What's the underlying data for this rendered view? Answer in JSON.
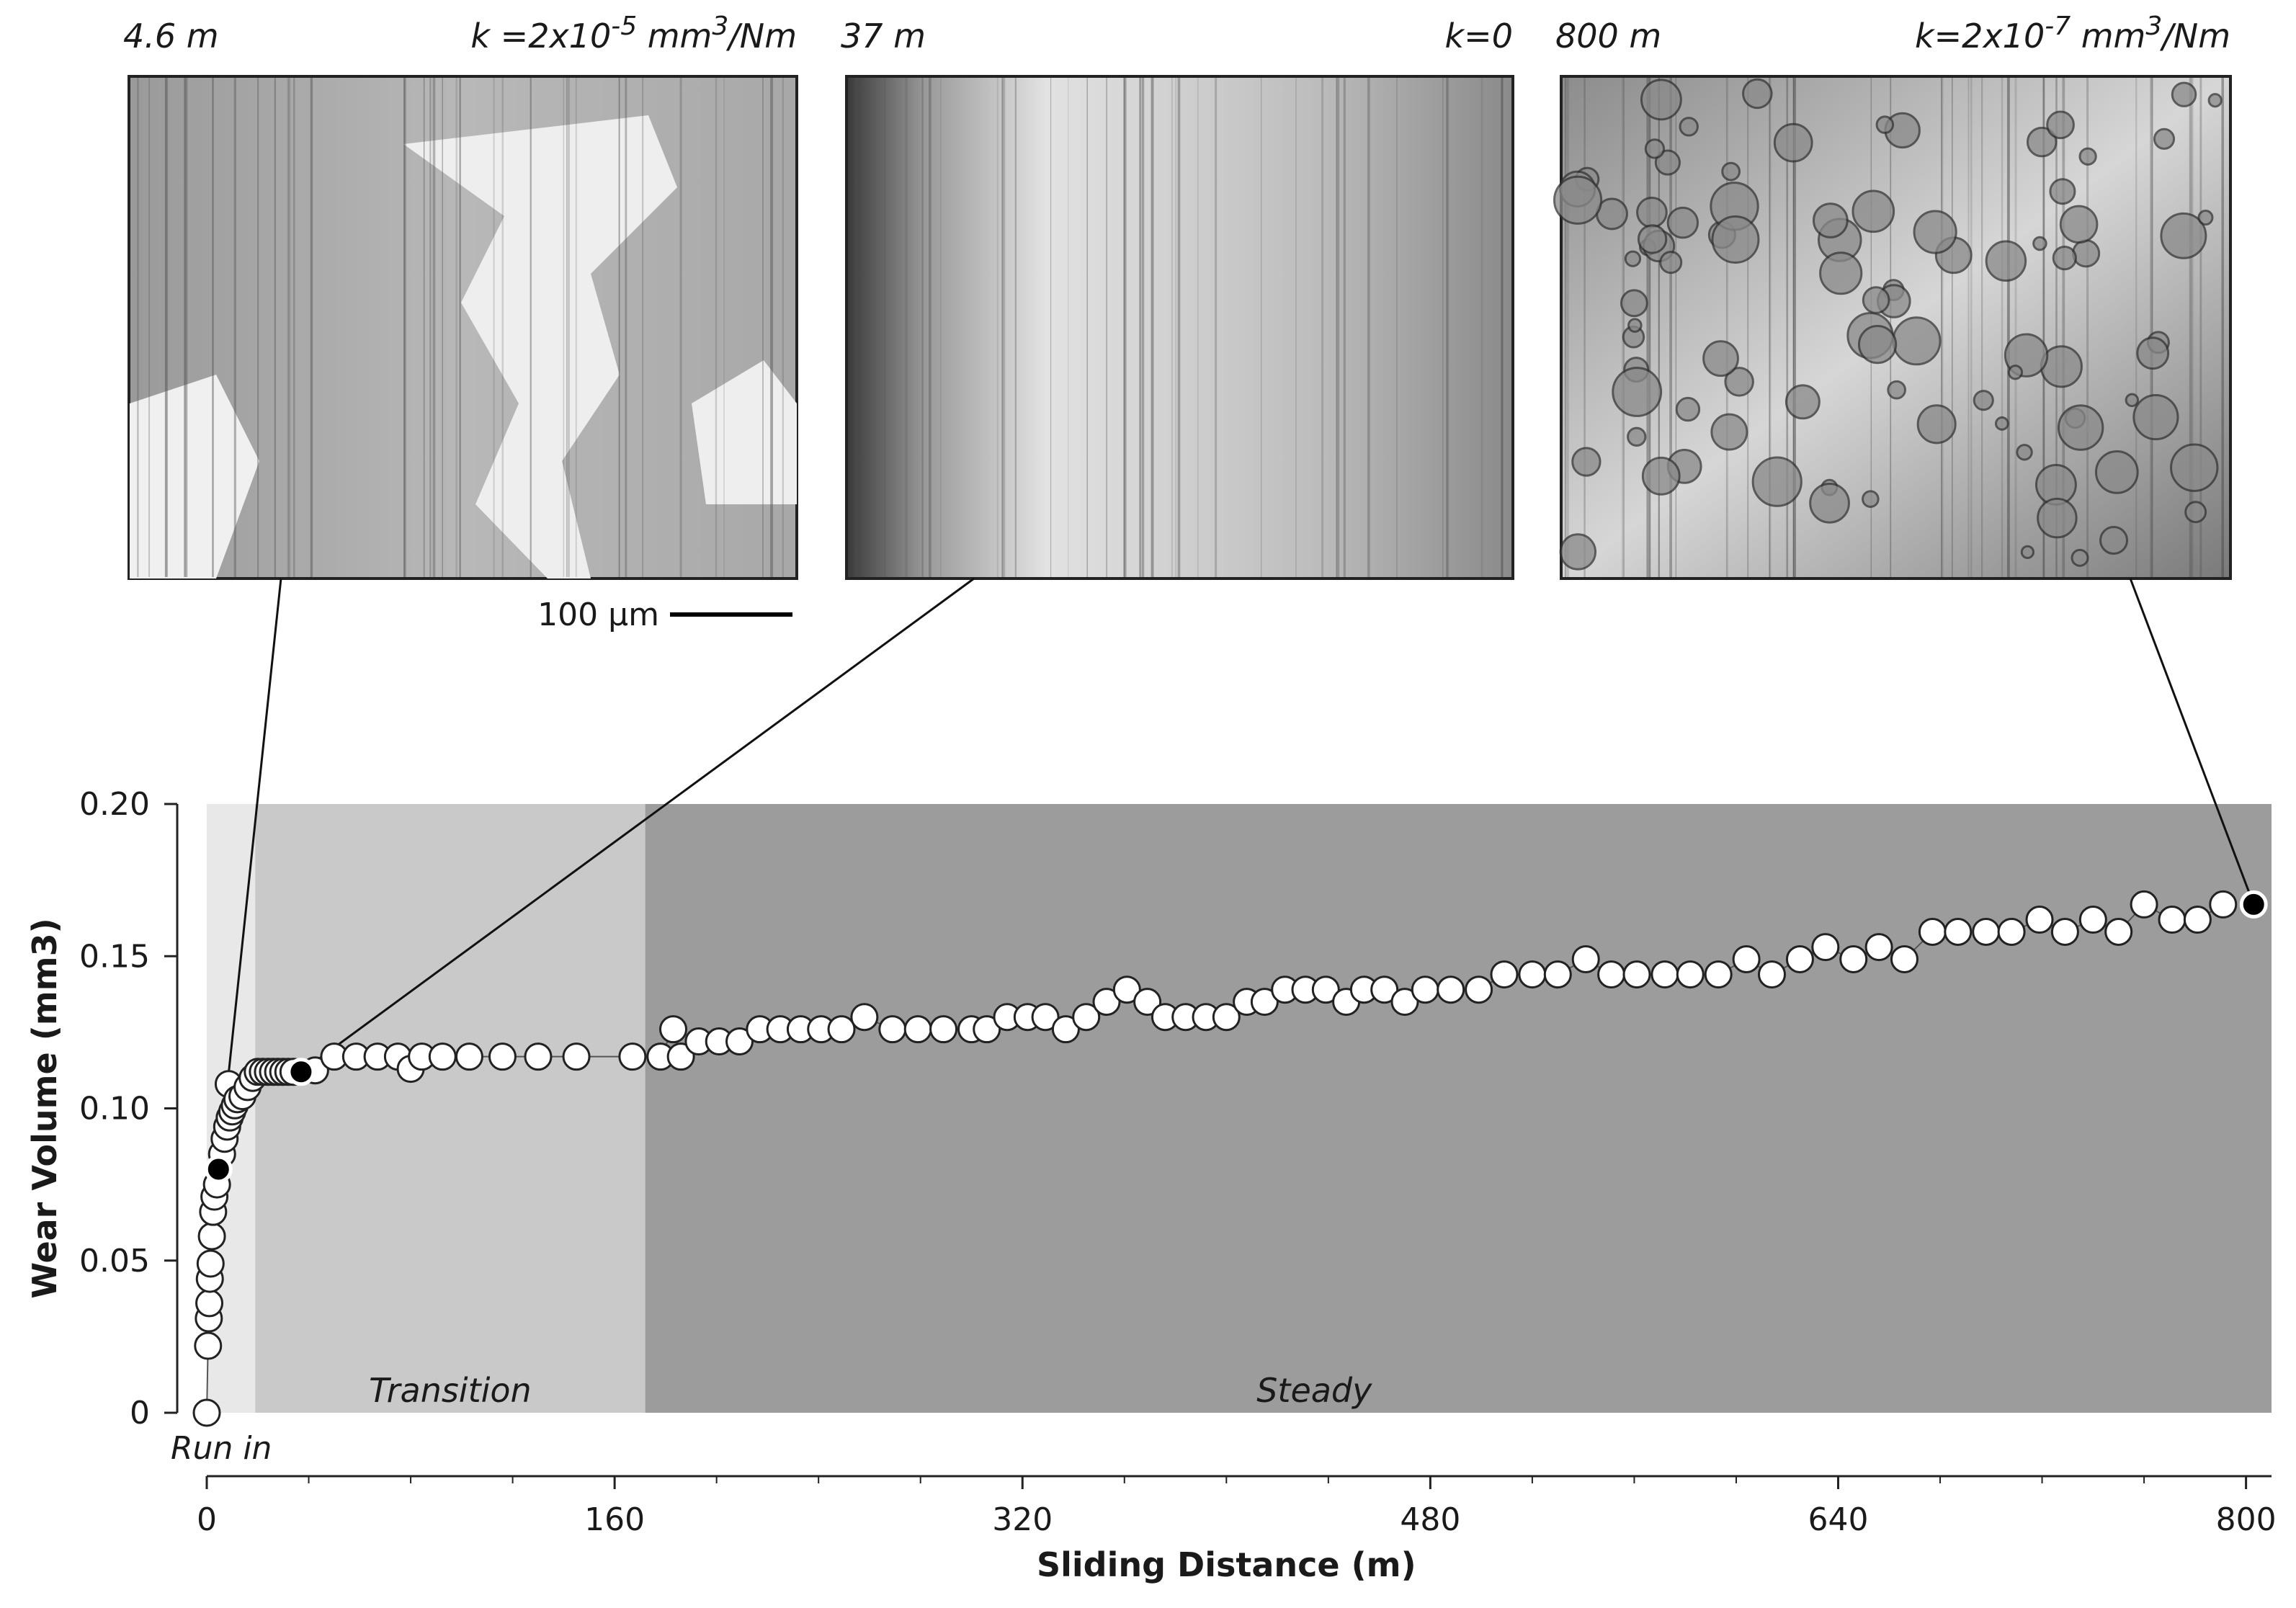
{
  "chart_data": {
    "type": "scatter",
    "xlabel": "Sliding Distance (m)",
    "ylabel": "Wear Volume (mm3)",
    "xlim": [
      0,
      810
    ],
    "ylim": [
      0,
      0.2
    ],
    "xticks": [
      0,
      160,
      320,
      480,
      640,
      800
    ],
    "xminorticks": [
      40,
      80,
      120,
      200,
      240,
      280,
      360,
      400,
      440,
      520,
      560,
      600,
      680,
      720,
      760
    ],
    "yticks": [
      0,
      {
        "value": 0.05,
        "label": "0.05"
      },
      {
        "value": 0.1,
        "label": "0.10"
      },
      {
        "value": 0.15,
        "label": "0.15"
      },
      {
        "value": 0.2,
        "label": "0.20"
      }
    ],
    "regions": [
      {
        "name": "Run in",
        "start": 0,
        "end": 19,
        "color": "#e8e8e8"
      },
      {
        "name": "Transition",
        "start": 19,
        "end": 172,
        "color": "#c9c9c9"
      },
      {
        "name": "Steady",
        "start": 172,
        "end": 810,
        "color": "#9c9c9c"
      }
    ],
    "marker_color": "#ffffff",
    "x": [
      0,
      0.5,
      0.8,
      1,
      1.2,
      1.5,
      2,
      2.5,
      3,
      4,
      6,
      7,
      8,
      8.6,
      9,
      10,
      11,
      12,
      14,
      16,
      18,
      20,
      22,
      24,
      26,
      28,
      30,
      32,
      34,
      42.5,
      50,
      58.6,
      67,
      75,
      80,
      84.4,
      92.5,
      103,
      116,
      130,
      145,
      167,
      178,
      183,
      186,
      193,
      201,
      209,
      217,
      225,
      233,
      241,
      249,
      258,
      269,
      279,
      289,
      300,
      306,
      314,
      322,
      329,
      337,
      345,
      353,
      361,
      369,
      376,
      384,
      392,
      400,
      408,
      415,
      423,
      431,
      439,
      447,
      454,
      462,
      470,
      478,
      488,
      499,
      509,
      520,
      530,
      541,
      551,
      561,
      572,
      582,
      593,
      604,
      614,
      625,
      635,
      646,
      656,
      666,
      677,
      687,
      698,
      708,
      719,
      729,
      740,
      750,
      760,
      771,
      781,
      791
    ],
    "values": [
      0,
      0.022,
      0.031,
      0.036,
      0.044,
      0.049,
      0.058,
      0.066,
      0.071,
      0.075,
      0.085,
      0.09,
      0.094,
      0.108,
      0.097,
      0.099,
      0.101,
      0.103,
      0.104,
      0.107,
      0.11,
      0.112,
      0.112,
      0.112,
      0.112,
      0.112,
      0.112,
      0.112,
      0.112,
      0.1125,
      0.117,
      0.117,
      0.117,
      0.117,
      0.113,
      0.117,
      0.117,
      0.117,
      0.117,
      0.117,
      0.117,
      0.117,
      0.117,
      0.126,
      0.117,
      0.122,
      0.122,
      0.122,
      0.126,
      0.126,
      0.126,
      0.126,
      0.126,
      0.13,
      0.126,
      0.126,
      0.126,
      0.126,
      0.126,
      0.13,
      0.13,
      0.13,
      0.126,
      0.13,
      0.135,
      0.139,
      0.135,
      0.13,
      0.13,
      0.13,
      0.13,
      0.135,
      0.135,
      0.139,
      0.139,
      0.139,
      0.135,
      0.139,
      0.139,
      0.135,
      0.139,
      0.139,
      0.139,
      0.144,
      0.144,
      0.144,
      0.149,
      0.144,
      0.144,
      0.144,
      0.144,
      0.144,
      0.149,
      0.144,
      0.149,
      0.153,
      0.149,
      0.153,
      0.149,
      0.158,
      0.158,
      0.158,
      0.158,
      0.162,
      0.158,
      0.162,
      0.158,
      0.167,
      0.162,
      0.162,
      0.167
    ],
    "highlights": {
      "color": "#000000",
      "x": [
        4.6,
        37,
        803
      ],
      "values": [
        0.08,
        0.112,
        0.167
      ]
    },
    "panels": [
      {
        "distance": "4.6 m",
        "rate": [
          "k  =2x10",
          "-5",
          " mm",
          "3",
          "/Nm"
        ]
      },
      {
        "distance": "37 m",
        "rate": [
          "k=0"
        ]
      },
      {
        "distance": "800 m",
        "rate": [
          "k=2x10",
          "-7",
          " mm",
          "3",
          "/Nm"
        ]
      }
    ],
    "scale_bar": "100 µm"
  }
}
